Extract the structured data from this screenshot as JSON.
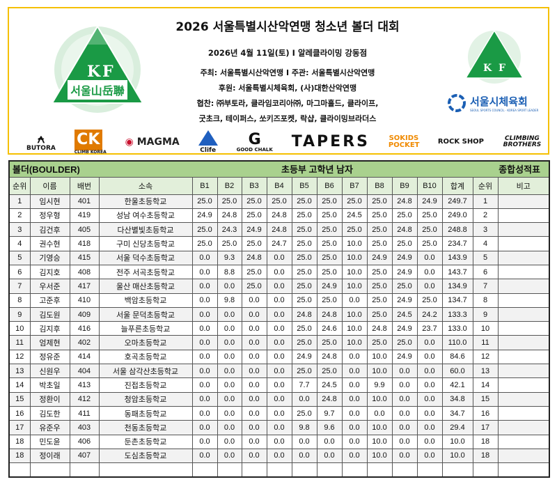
{
  "header": {
    "title": "2026 서울특별시산악연맹 청소년 볼더 대회",
    "date_venue": "2026년 4월 11일(토) I 알레클라이밍 강동점",
    "host": "주최: 서울특별시산악연맹 I 주관: 서울특별시산악연맹",
    "support": "후원: 서울특별시체육회, (사)대한산악연맹",
    "coop1": "협찬: ㈜부토라, 클라임코리아㈜, 마그마홀드, 클라이프,",
    "coop2": "굿초크, 테이퍼스, 쏘키즈포켓, 락샵, 클라이밍브라더스",
    "left_logo_text": "K F 서울山岳聯",
    "right_logo_text": "K F",
    "seoul_council": "서울시체육회",
    "seoul_council_sub": "SEOUL SPORTS COUNCIL · KOREA SPORT LEADER",
    "brand_color": "#1a9a45",
    "border_color": "#f5c000"
  },
  "sponsors": [
    {
      "name": "BUTORA",
      "color": "#111"
    },
    {
      "name": "CLIMB KOREA",
      "color": "#e07a00"
    },
    {
      "name": "MAGMA",
      "color": "#c8102e"
    },
    {
      "name": "Clife",
      "color": "#1f5fbf"
    },
    {
      "name": "GOOD CHALK",
      "color": "#111"
    },
    {
      "name": "TAPERS",
      "color": "#111"
    },
    {
      "name": "SOKIDS POCKET",
      "color": "#f08a00"
    },
    {
      "name": "ROCK SHOP",
      "color": "#111"
    },
    {
      "name": "CLIMBING BROTHERS",
      "color": "#333"
    }
  ],
  "table": {
    "event": "볼더(BOULDER)",
    "division": "초등부 고학년 남자",
    "sheet": "종합성적표",
    "columns": [
      "순위",
      "이름",
      "배번",
      "소속",
      "B1",
      "B2",
      "B3",
      "B4",
      "B5",
      "B6",
      "B7",
      "B8",
      "B9",
      "B10",
      "합계",
      "순위",
      "비고"
    ],
    "header_color": "#a9d18e",
    "rows": [
      [
        "1",
        "임시현",
        "401",
        "한울초등학교",
        "25.0",
        "25.0",
        "25.0",
        "25.0",
        "25.0",
        "25.0",
        "25.0",
        "25.0",
        "24.8",
        "24.9",
        "249.7",
        "1",
        ""
      ],
      [
        "2",
        "정우형",
        "419",
        "성남 여수초등학교",
        "24.9",
        "24.8",
        "25.0",
        "24.8",
        "25.0",
        "25.0",
        "24.5",
        "25.0",
        "25.0",
        "25.0",
        "249.0",
        "2",
        ""
      ],
      [
        "3",
        "김건후",
        "405",
        "다산별빛초등학교",
        "25.0",
        "24.3",
        "24.9",
        "24.8",
        "25.0",
        "25.0",
        "25.0",
        "25.0",
        "24.8",
        "25.0",
        "248.8",
        "3",
        ""
      ],
      [
        "4",
        "권수현",
        "418",
        "구미 신당초등학교",
        "25.0",
        "25.0",
        "25.0",
        "24.7",
        "25.0",
        "25.0",
        "10.0",
        "25.0",
        "25.0",
        "25.0",
        "234.7",
        "4",
        ""
      ],
      [
        "5",
        "기영승",
        "415",
        "서울 덕수초등학교",
        "0.0",
        "9.3",
        "24.8",
        "0.0",
        "25.0",
        "25.0",
        "10.0",
        "24.9",
        "24.9",
        "0.0",
        "143.9",
        "5",
        ""
      ],
      [
        "6",
        "김지호",
        "408",
        "전주 서곡초등학교",
        "0.0",
        "8.8",
        "25.0",
        "0.0",
        "25.0",
        "25.0",
        "10.0",
        "25.0",
        "24.9",
        "0.0",
        "143.7",
        "6",
        ""
      ],
      [
        "7",
        "우서준",
        "417",
        "울산 매산초등학교",
        "0.0",
        "0.0",
        "25.0",
        "0.0",
        "25.0",
        "24.9",
        "10.0",
        "25.0",
        "25.0",
        "0.0",
        "134.9",
        "7",
        ""
      ],
      [
        "8",
        "고준후",
        "410",
        "백암초등학교",
        "0.0",
        "9.8",
        "0.0",
        "0.0",
        "25.0",
        "25.0",
        "0.0",
        "25.0",
        "24.9",
        "25.0",
        "134.7",
        "8",
        ""
      ],
      [
        "9",
        "김도원",
        "409",
        "서울 문덕초등학교",
        "0.0",
        "0.0",
        "0.0",
        "0.0",
        "24.8",
        "24.8",
        "10.0",
        "25.0",
        "24.5",
        "24.2",
        "133.3",
        "9",
        ""
      ],
      [
        "10",
        "김지후",
        "416",
        "늘푸른초등학교",
        "0.0",
        "0.0",
        "0.0",
        "0.0",
        "25.0",
        "24.6",
        "10.0",
        "24.8",
        "24.9",
        "23.7",
        "133.0",
        "10",
        ""
      ],
      [
        "11",
        "엄제현",
        "402",
        "오마초등학교",
        "0.0",
        "0.0",
        "0.0",
        "0.0",
        "25.0",
        "25.0",
        "10.0",
        "25.0",
        "25.0",
        "0.0",
        "110.0",
        "11",
        ""
      ],
      [
        "12",
        "정유준",
        "414",
        "호곡초등학교",
        "0.0",
        "0.0",
        "0.0",
        "0.0",
        "24.9",
        "24.8",
        "0.0",
        "10.0",
        "24.9",
        "0.0",
        "84.6",
        "12",
        ""
      ],
      [
        "13",
        "신원우",
        "404",
        "서울 삼각산초등학교",
        "0.0",
        "0.0",
        "0.0",
        "0.0",
        "25.0",
        "25.0",
        "0.0",
        "10.0",
        "0.0",
        "0.0",
        "60.0",
        "13",
        ""
      ],
      [
        "14",
        "박초일",
        "413",
        "진접초등학교",
        "0.0",
        "0.0",
        "0.0",
        "0.0",
        "7.7",
        "24.5",
        "0.0",
        "9.9",
        "0.0",
        "0.0",
        "42.1",
        "14",
        ""
      ],
      [
        "15",
        "정환이",
        "412",
        "청암초등학교",
        "0.0",
        "0.0",
        "0.0",
        "0.0",
        "0.0",
        "24.8",
        "0.0",
        "10.0",
        "0.0",
        "0.0",
        "34.8",
        "15",
        ""
      ],
      [
        "16",
        "김도한",
        "411",
        "동패초등학교",
        "0.0",
        "0.0",
        "0.0",
        "0.0",
        "25.0",
        "9.7",
        "0.0",
        "0.0",
        "0.0",
        "0.0",
        "34.7",
        "16",
        ""
      ],
      [
        "17",
        "유준우",
        "403",
        "천동초등학교",
        "0.0",
        "0.0",
        "0.0",
        "0.0",
        "9.8",
        "9.6",
        "0.0",
        "10.0",
        "0.0",
        "0.0",
        "29.4",
        "17",
        ""
      ],
      [
        "18",
        "민도윤",
        "406",
        "둔촌초등학교",
        "0.0",
        "0.0",
        "0.0",
        "0.0",
        "0.0",
        "0.0",
        "0.0",
        "10.0",
        "0.0",
        "0.0",
        "10.0",
        "18",
        ""
      ],
      [
        "18",
        "정이래",
        "407",
        "도심초등학교",
        "0.0",
        "0.0",
        "0.0",
        "0.0",
        "0.0",
        "0.0",
        "0.0",
        "10.0",
        "0.0",
        "0.0",
        "10.0",
        "18",
        ""
      ],
      [
        "",
        "",
        "",
        "",
        "",
        "",
        "",
        "",
        "",
        "",
        "",
        "",
        "",
        "",
        "",
        "",
        ""
      ]
    ]
  }
}
